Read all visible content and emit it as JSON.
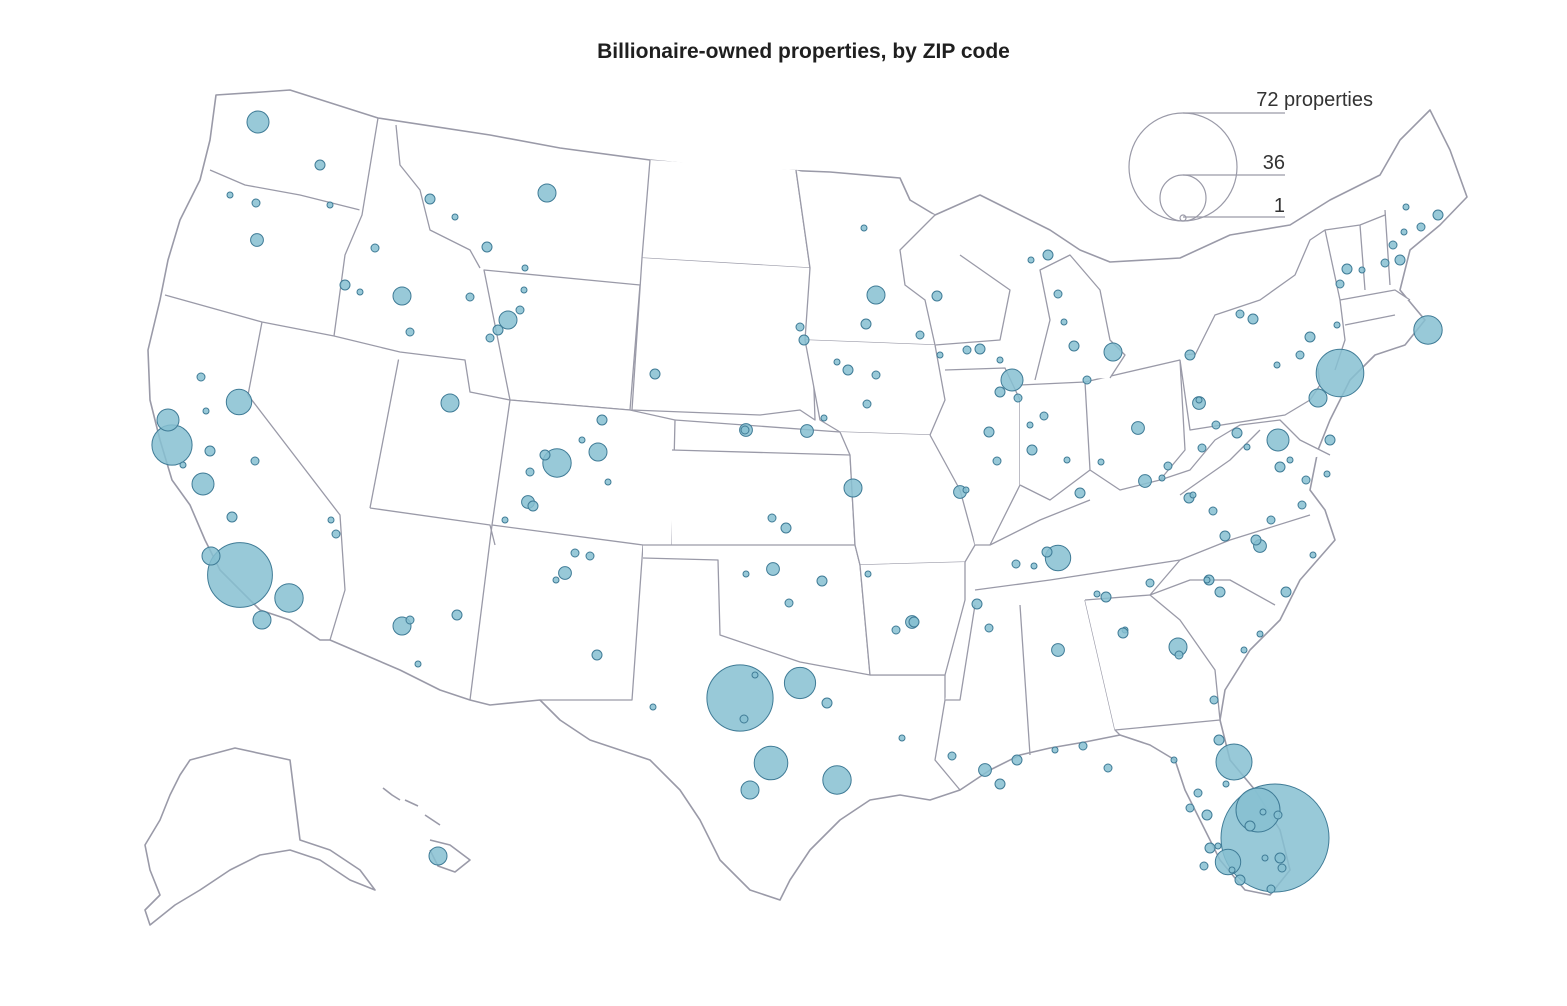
{
  "title": "Billionaire-owned properties, by ZIP code",
  "colors": {
    "bubble_fill": "#86c0d1",
    "bubble_stroke": "#3f7b96",
    "state_stroke": "#9a9aa8"
  },
  "legend": {
    "items": [
      {
        "label": "72 properties",
        "value": 72
      },
      {
        "label": "36",
        "value": 36
      },
      {
        "label": "1",
        "value": 1
      }
    ]
  },
  "map_data": {
    "type": "proportional-symbol",
    "max_value": 72,
    "points": [
      {
        "place": "Miami area, FL",
        "value": 72
      },
      {
        "place": "Palm Beach, FL",
        "value": 12
      },
      {
        "place": "Orlando area, FL",
        "value": 8
      },
      {
        "place": "Tampa / Naples, FL",
        "value": 4
      },
      {
        "place": "Los Angeles, CA",
        "value": 26
      },
      {
        "place": "Palm Springs, CA",
        "value": 5
      },
      {
        "place": "Santa Barbara, CA",
        "value": 2
      },
      {
        "place": "San Diego, CA",
        "value": 2
      },
      {
        "place": "San Francisco Bay Area, CA",
        "value": 10
      },
      {
        "place": "Napa / Sonoma, CA",
        "value": 3
      },
      {
        "place": "Lake Tahoe, CA/NV",
        "value": 4
      },
      {
        "place": "Fresno area, CA",
        "value": 3
      },
      {
        "place": "Dallas, TX",
        "value": 27
      },
      {
        "place": "Dallas–Fort Worth suburbs, TX",
        "value": 6
      },
      {
        "place": "Austin, TX",
        "value": 7
      },
      {
        "place": "Houston, TX",
        "value": 5
      },
      {
        "place": "San Antonio, TX",
        "value": 2
      },
      {
        "place": "New York City, NY",
        "value": 14
      },
      {
        "place": "Boston, MA",
        "value": 5
      },
      {
        "place": "Aspen, CO",
        "value": 5
      },
      {
        "place": "Denver, CO",
        "value": 2
      },
      {
        "place": "Nashville, TN",
        "value": 4
      },
      {
        "place": "Chicago, IL",
        "value": 3
      },
      {
        "place": "Seattle, WA",
        "value": 3
      },
      {
        "place": "Jackson, WY",
        "value": 2
      },
      {
        "place": "Sun Valley, ID",
        "value": 2
      },
      {
        "place": "Bozeman, MT",
        "value": 2
      },
      {
        "place": "Honolulu / Maui, HI",
        "value": 2
      },
      {
        "place": "Kansas City, MO",
        "value": 2
      },
      {
        "place": "Atlanta, GA",
        "value": 2
      },
      {
        "place": "Washington, DC",
        "value": 3
      },
      {
        "place": "Philadelphia, PA",
        "value": 2
      },
      {
        "place": "Detroit, MI",
        "value": 2
      },
      {
        "place": "Minneapolis, MN",
        "value": 2
      },
      {
        "place": "Salt Lake City, UT",
        "value": 2
      },
      {
        "place": "Phoenix / Scottsdale, AZ",
        "value": 2
      },
      {
        "place": "Santa Fe, NM",
        "value": 1
      },
      {
        "place": "Charlotte, NC",
        "value": 1
      },
      {
        "place": "Pittsburgh, PA",
        "value": 1
      },
      {
        "place": "Columbus, OH",
        "value": 1
      },
      {
        "place": "Omaha, NE",
        "value": 1
      },
      {
        "place": "St. Louis, MO",
        "value": 1
      },
      {
        "place": "New Orleans, LA",
        "value": 1
      },
      {
        "place": "Jackson Hole area, WY",
        "value": 1
      },
      {
        "place": "Portland, OR",
        "value": 1
      },
      {
        "place": "Lexington, KY",
        "value": 1
      },
      {
        "place": "Birmingham, AL",
        "value": 1
      },
      {
        "place": "Oklahoma City, OK",
        "value": 1
      },
      {
        "place": "Wichita, KS",
        "value": 1
      },
      {
        "place": "Little Rock, AR",
        "value": 1
      }
    ]
  }
}
